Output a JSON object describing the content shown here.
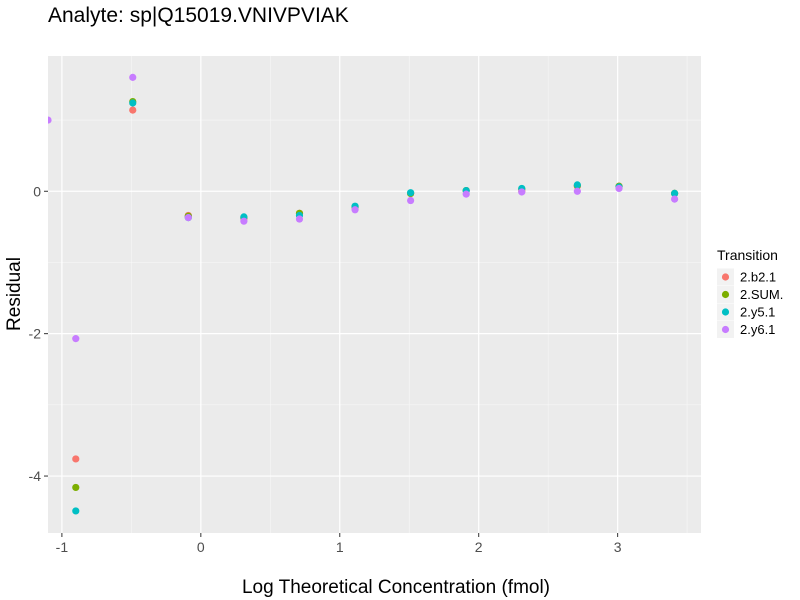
{
  "chart_data": {
    "type": "scatter",
    "title": "Analyte: sp|Q15019.VNIVPVIAK",
    "xlabel": "Log Theoretical Concentration (fmol)",
    "ylabel": "Residual",
    "xlim": [
      -1.1,
      3.6
    ],
    "ylim": [
      -4.8,
      1.9
    ],
    "xticks": [
      -1,
      0,
      1,
      2,
      3
    ],
    "yticks": [
      -4,
      -2,
      0
    ],
    "grid": true,
    "legend": {
      "title": "Transition",
      "position": "right"
    },
    "series": [
      {
        "name": "2.b2.1",
        "color": "#F8766D",
        "points": [
          [
            -0.9,
            -3.76
          ],
          [
            -0.49,
            1.14
          ],
          [
            -0.09,
            -0.34
          ],
          [
            0.31,
            -0.38
          ],
          [
            0.71,
            -0.31
          ],
          [
            1.11,
            -0.22
          ],
          [
            1.51,
            -0.03
          ],
          [
            1.91,
            0.01
          ],
          [
            2.31,
            0.0
          ],
          [
            2.71,
            0.07
          ],
          [
            3.01,
            0.07
          ],
          [
            3.41,
            -0.03
          ]
        ]
      },
      {
        "name": "2.SUM.",
        "color": "#7CAE00",
        "points": [
          [
            -0.9,
            -4.16
          ],
          [
            -0.49,
            1.26
          ],
          [
            -0.09,
            -0.35
          ],
          [
            0.31,
            -0.37
          ],
          [
            0.71,
            -0.31
          ],
          [
            1.11,
            -0.22
          ],
          [
            1.51,
            -0.03
          ],
          [
            1.91,
            0.01
          ],
          [
            2.31,
            0.03
          ],
          [
            2.71,
            0.08
          ],
          [
            3.01,
            0.07
          ],
          [
            3.41,
            -0.03
          ]
        ]
      },
      {
        "name": "2.y5.1",
        "color": "#00BFC4",
        "points": [
          [
            -0.9,
            -4.49
          ],
          [
            -0.49,
            1.24
          ],
          [
            -0.09,
            -0.37
          ],
          [
            0.31,
            -0.36
          ],
          [
            0.71,
            -0.34
          ],
          [
            1.11,
            -0.21
          ],
          [
            1.51,
            -0.02
          ],
          [
            1.91,
            0.01
          ],
          [
            2.31,
            0.04
          ],
          [
            2.71,
            0.09
          ],
          [
            3.01,
            0.06
          ],
          [
            3.41,
            -0.03
          ]
        ]
      },
      {
        "name": "2.y6.1",
        "color": "#C77CFF",
        "points": [
          [
            -1.1,
            1.0
          ],
          [
            -0.9,
            -2.07
          ],
          [
            -0.49,
            1.6
          ],
          [
            -0.09,
            -0.37
          ],
          [
            0.31,
            -0.42
          ],
          [
            0.71,
            -0.39
          ],
          [
            1.11,
            -0.26
          ],
          [
            1.51,
            -0.13
          ],
          [
            1.91,
            -0.04
          ],
          [
            2.31,
            -0.01
          ],
          [
            2.71,
            0.0
          ],
          [
            3.01,
            0.04
          ],
          [
            3.41,
            -0.11
          ]
        ]
      }
    ]
  }
}
